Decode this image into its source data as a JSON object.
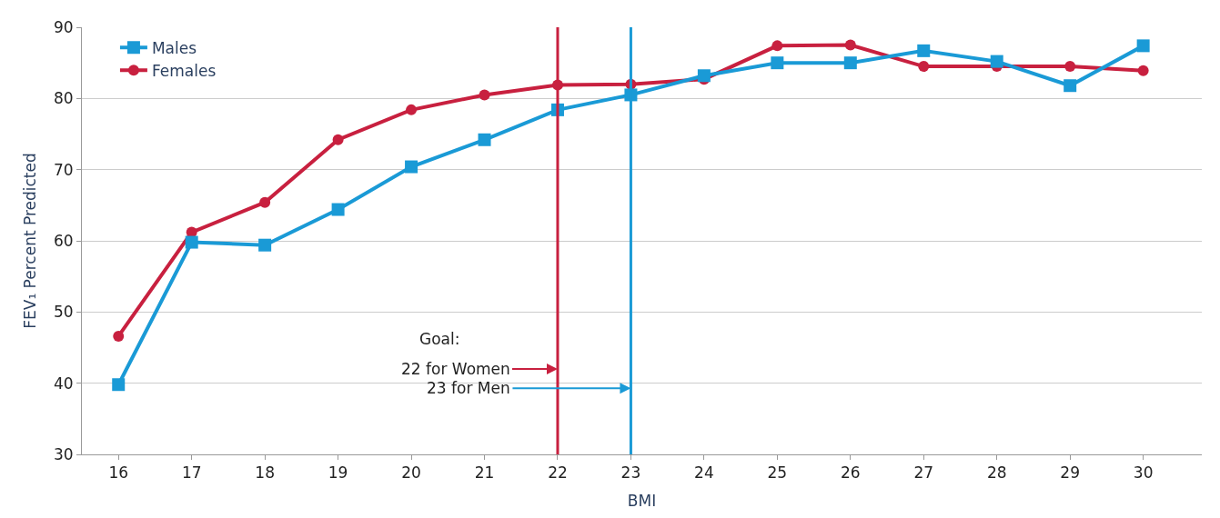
{
  "chart_data": {
    "type": "line",
    "xlabel": "BMI",
    "ylabel": "FEV₁ Percent Predicted",
    "x": [
      16,
      17,
      18,
      19,
      20,
      21,
      22,
      23,
      24,
      25,
      26,
      27,
      28,
      29,
      30
    ],
    "series": [
      {
        "name": "Males",
        "color": "#1a9ad6",
        "marker": "square",
        "values": [
          39.8,
          59.8,
          59.4,
          64.4,
          70.4,
          74.2,
          78.4,
          80.5,
          83.2,
          85.0,
          85.0,
          86.7,
          85.2,
          81.8,
          87.4
        ]
      },
      {
        "name": "Females",
        "color": "#c8203f",
        "marker": "circle",
        "values": [
          46.6,
          61.2,
          65.4,
          74.2,
          78.4,
          80.5,
          81.9,
          82.0,
          82.7,
          87.4,
          87.5,
          84.5,
          84.5,
          84.5,
          83.9
        ]
      }
    ],
    "xlim": [
      15.5,
      30.8
    ],
    "xticks": [
      16,
      17,
      18,
      19,
      20,
      21,
      22,
      23,
      24,
      25,
      26,
      27,
      28,
      29,
      30
    ],
    "ylim": [
      30,
      90
    ],
    "yticks": [
      30,
      40,
      50,
      60,
      70,
      80,
      90
    ],
    "ref_lines": [
      {
        "axis": "x",
        "value": 22,
        "label": "22 for Women",
        "color": "#c8203f"
      },
      {
        "axis": "x",
        "value": 23,
        "label": "23 for Men",
        "color": "#1a9ad6"
      }
    ],
    "annotations": [
      "Goal:"
    ],
    "grid": "y",
    "legend": "top left",
    "line_style": "solid"
  }
}
